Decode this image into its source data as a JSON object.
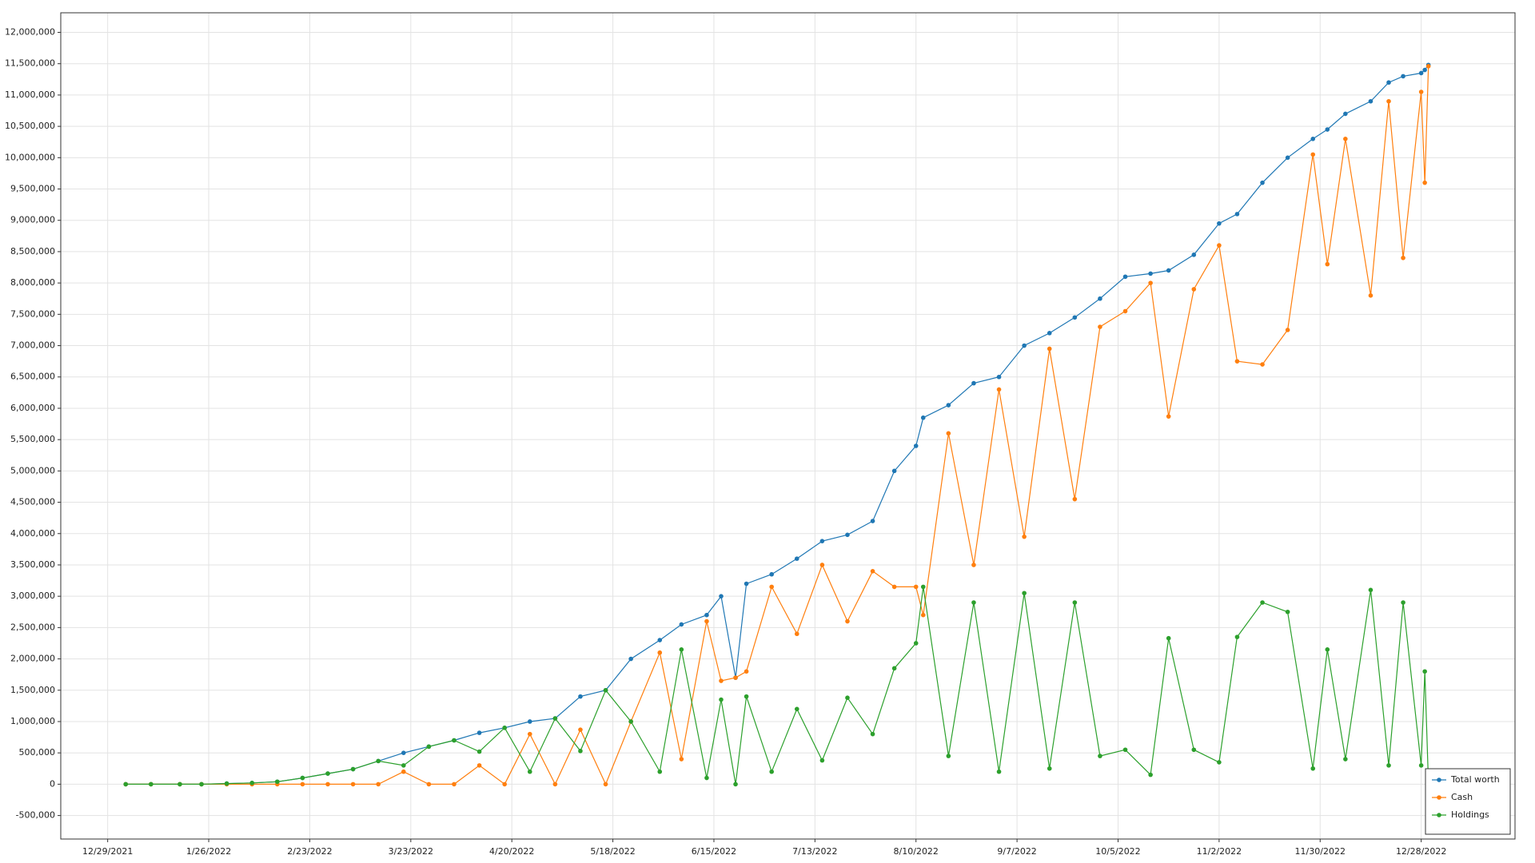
{
  "chart_data": {
    "type": "line",
    "x": [
      "1/3/2022",
      "1/10/2022",
      "1/18/2022",
      "1/24/2022",
      "1/31/2022",
      "2/7/2022",
      "2/14/2022",
      "2/21/2022",
      "2/28/2022",
      "3/7/2022",
      "3/14/2022",
      "3/21/2022",
      "3/28/2022",
      "4/4/2022",
      "4/11/2022",
      "4/18/2022",
      "4/25/2022",
      "5/2/2022",
      "5/9/2022",
      "5/16/2022",
      "5/23/2022",
      "5/31/2022",
      "6/6/2022",
      "6/13/2022",
      "6/17/2022",
      "6/21/2022",
      "6/24/2022",
      "7/1/2022",
      "7/8/2022",
      "7/15/2022",
      "7/22/2022",
      "7/29/2022",
      "8/4/2022",
      "8/10/2022",
      "8/12/2022",
      "8/19/2022",
      "8/26/2022",
      "9/2/2022",
      "9/9/2022",
      "9/16/2022",
      "9/23/2022",
      "9/30/2022",
      "10/7/2022",
      "10/14/2022",
      "10/19/2022",
      "10/26/2022",
      "11/2/2022",
      "11/7/2022",
      "11/14/2022",
      "11/21/2022",
      "11/28/2022",
      "12/2/2022",
      "12/7/2022",
      "12/14/2022",
      "12/19/2022",
      "12/23/2022",
      "12/28/2022",
      "12/29/2022",
      "12/30/2022"
    ],
    "series": [
      {
        "name": "Total worth",
        "color": "#1f77b4",
        "values": [
          0,
          0,
          0,
          0,
          10000,
          20000,
          40000,
          100000,
          170000,
          240000,
          370000,
          500000,
          600000,
          700000,
          820000,
          900000,
          1000000,
          1050000,
          1400000,
          1500000,
          2000000,
          2300000,
          2550000,
          2700000,
          3000000,
          1700000,
          3200000,
          3350000,
          3600000,
          3880000,
          3980000,
          4200000,
          5000000,
          5400000,
          5850000,
          6050000,
          6400000,
          6500000,
          7000000,
          7200000,
          7450000,
          7750000,
          8100000,
          8150000,
          8200000,
          8450000,
          8950000,
          9100000,
          9600000,
          10000000,
          10300000,
          10450000,
          10700000,
          10900000,
          11200000,
          11300000,
          11350000,
          11400000,
          11480000
        ]
      },
      {
        "name": "Cash",
        "color": "#ff7f0e",
        "values": [
          0,
          0,
          0,
          0,
          0,
          0,
          0,
          0,
          0,
          0,
          0,
          200000,
          0,
          0,
          300000,
          0,
          800000,
          0,
          870000,
          0,
          1000000,
          2100000,
          400000,
          2600000,
          1650000,
          1700000,
          1800000,
          3150000,
          2400000,
          3500000,
          2600000,
          3400000,
          3150000,
          3150000,
          2700000,
          5600000,
          3500000,
          6300000,
          3950000,
          6950000,
          4550000,
          7300000,
          7550000,
          8000000,
          5870000,
          7900000,
          8600000,
          6750000,
          6700000,
          7250000,
          10050000,
          8300000,
          10300000,
          7800000,
          10900000,
          8400000,
          11050000,
          9600000,
          11460000
        ]
      },
      {
        "name": "Holdings",
        "color": "#2ca02c",
        "values": [
          0,
          0,
          0,
          0,
          10000,
          20000,
          40000,
          100000,
          170000,
          240000,
          370000,
          300000,
          600000,
          700000,
          520000,
          900000,
          200000,
          1050000,
          530000,
          1500000,
          1000000,
          200000,
          2150000,
          100000,
          1350000,
          0,
          1400000,
          200000,
          1200000,
          380000,
          1380000,
          800000,
          1850000,
          2250000,
          3150000,
          450000,
          2900000,
          200000,
          3050000,
          250000,
          2900000,
          450000,
          550000,
          150000,
          2330000,
          550000,
          350000,
          2350000,
          2900000,
          2750000,
          250000,
          2150000,
          400000,
          3100000,
          300000,
          2900000,
          300000,
          1800000,
          20000
        ]
      }
    ],
    "xlim": [
      "12/16/2021",
      "1/23/2023"
    ],
    "xticks": [
      "12/29/2021",
      "1/26/2022",
      "2/23/2022",
      "3/23/2022",
      "4/20/2022",
      "5/18/2022",
      "6/15/2022",
      "7/13/2022",
      "8/10/2022",
      "9/7/2022",
      "10/5/2022",
      "11/2/2022",
      "11/30/2022",
      "12/28/2022"
    ],
    "ylim": [
      -875000,
      12312500
    ],
    "yticks": [
      {
        "value": -500000,
        "label": "-500,000"
      },
      0,
      {
        "value": 500000,
        "label": "500,000"
      },
      {
        "value": 1000000,
        "label": "1,000,000"
      },
      {
        "value": 1500000,
        "label": "1,500,000"
      },
      {
        "value": 2000000,
        "label": "2,000,000"
      },
      {
        "value": 2500000,
        "label": "2,500,000"
      },
      {
        "value": 3000000,
        "label": "3,000,000"
      },
      {
        "value": 3500000,
        "label": "3,500,000"
      },
      {
        "value": 4000000,
        "label": "4,000,000"
      },
      {
        "value": 4500000,
        "label": "4,500,000"
      },
      {
        "value": 5000000,
        "label": "5,000,000"
      },
      {
        "value": 5500000,
        "label": "5,500,000"
      },
      {
        "value": 6000000,
        "label": "6,000,000"
      },
      {
        "value": 6500000,
        "label": "6,500,000"
      },
      {
        "value": 7000000,
        "label": "7,000,000"
      },
      {
        "value": 7500000,
        "label": "7,500,000"
      },
      {
        "value": 8000000,
        "label": "8,000,000"
      },
      {
        "value": 8500000,
        "label": "8,500,000"
      },
      {
        "value": 9000000,
        "label": "9,000,000"
      },
      {
        "value": 9500000,
        "label": "9,500,000"
      },
      {
        "value": 10000000,
        "label": "10,000,000"
      },
      {
        "value": 10500000,
        "label": "10,500,000"
      },
      {
        "value": 11000000,
        "label": "11,000,000"
      },
      {
        "value": 11500000,
        "label": "11,500,000"
      },
      {
        "value": 12000000,
        "label": "12,000,000"
      }
    ],
    "grid": true,
    "legend": "lower right"
  }
}
